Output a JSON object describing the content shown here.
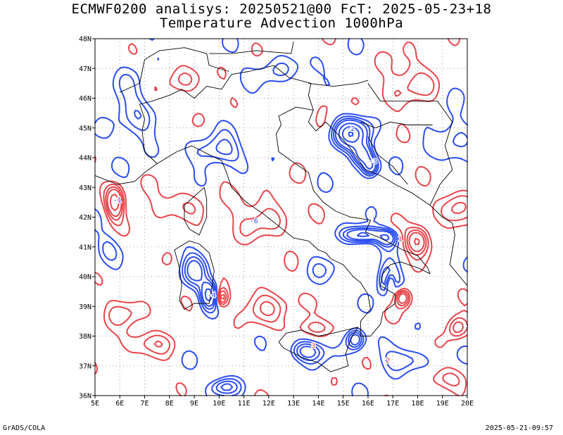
{
  "header": {
    "title_line1": "ECMWF0200 analisys: 20250521@00 FcT: 2025-05-23+18",
    "title_line2": "Temperature Advection 1000hPa"
  },
  "map": {
    "lat_labels": [
      "48N",
      "47N",
      "46N",
      "45N",
      "44N",
      "43N",
      "42N",
      "41N",
      "40N",
      "39N",
      "38N",
      "37N",
      "36N"
    ],
    "lon_labels": [
      "5E",
      "6E",
      "7E",
      "8E",
      "9E",
      "10E",
      "11E",
      "12E",
      "13E",
      "14E",
      "15E",
      "16E",
      "17E",
      "18E",
      "19E",
      "20E"
    ],
    "positive_color": "#e8454b",
    "negative_color": "#2b4ef0",
    "coast_color": "#000000",
    "grid": "dotted",
    "contour_labels": [
      {
        "text": "-1",
        "sign": "neg"
      },
      {
        "text": "-2",
        "sign": "neg"
      },
      {
        "text": "-3",
        "sign": "neg"
      },
      {
        "text": "-4",
        "sign": "neg"
      },
      {
        "text": "-6",
        "sign": "neg"
      },
      {
        "text": "1",
        "sign": "pos"
      },
      {
        "text": "2",
        "sign": "pos"
      },
      {
        "text": "3",
        "sign": "pos"
      }
    ]
  },
  "footer": {
    "left": "GrADS/COLA",
    "right": "2025-05-21-09:57"
  }
}
